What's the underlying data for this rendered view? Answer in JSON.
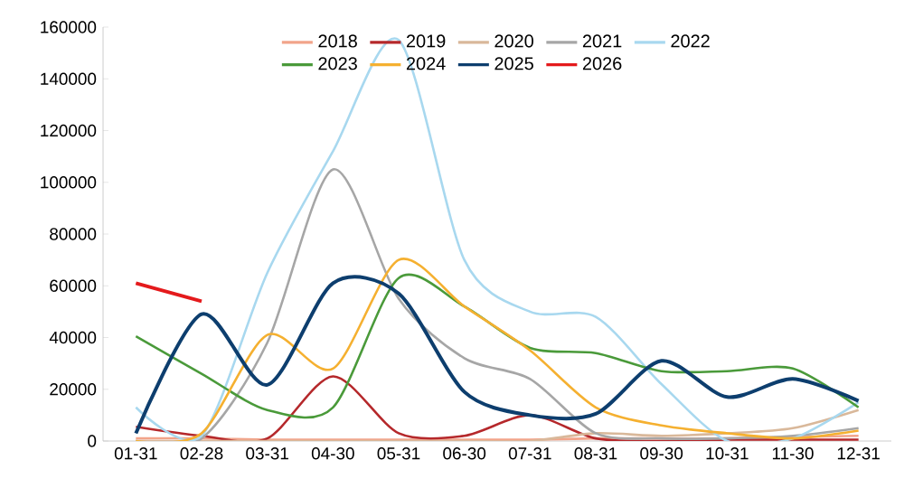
{
  "chart_data": {
    "type": "line",
    "categories": [
      "01-31",
      "02-28",
      "03-31",
      "04-30",
      "05-31",
      "06-30",
      "07-31",
      "08-31",
      "09-30",
      "10-31",
      "11-30",
      "12-31"
    ],
    "series": [
      {
        "name": "2018",
        "color": "#f2a48a",
        "values": [
          1000,
          1000,
          500,
          500,
          500,
          500,
          500,
          1000,
          1000,
          1000,
          1500,
          2000
        ]
      },
      {
        "name": "2019",
        "color": "#b5282b",
        "values": [
          5500,
          2000,
          1000,
          25000,
          3000,
          2000,
          10000,
          1000,
          0,
          500,
          500,
          500
        ]
      },
      {
        "name": "2020",
        "color": "#d9b89a",
        "values": [
          0,
          0,
          0,
          0,
          0,
          0,
          0,
          3000,
          2000,
          3000,
          5000,
          12000
        ]
      },
      {
        "name": "2021",
        "color": "#a6a6a6",
        "values": [
          0,
          1000,
          38000,
          105000,
          55000,
          32000,
          24000,
          3000,
          1000,
          1000,
          2000,
          5000
        ]
      },
      {
        "name": "2022",
        "color": "#a8d8ef",
        "values": [
          13000,
          2000,
          65000,
          112000,
          155000,
          70000,
          50000,
          48000,
          22000,
          0,
          1000,
          15000
        ]
      },
      {
        "name": "2023",
        "color": "#4a9a3a",
        "values": [
          40500,
          26000,
          12000,
          13000,
          63000,
          52000,
          36000,
          34000,
          27000,
          27000,
          28000,
          13000
        ]
      },
      {
        "name": "2024",
        "color": "#f5b030",
        "values": [
          0,
          3000,
          41000,
          28000,
          70000,
          52000,
          35000,
          13000,
          6000,
          3000,
          1000,
          4000
        ]
      },
      {
        "name": "2025",
        "color": "#0d3e6e",
        "values": [
          3000,
          49000,
          21700,
          61000,
          57000,
          19000,
          10000,
          10500,
          31000,
          17000,
          24000,
          15500
        ]
      },
      {
        "name": "2026",
        "color": "#e41a1c",
        "values": [
          61000,
          54000,
          null,
          null,
          null,
          null,
          null,
          null,
          null,
          null,
          null,
          null
        ]
      }
    ],
    "ylim": [
      0,
      160000
    ],
    "yticks": [
      0,
      20000,
      40000,
      60000,
      80000,
      100000,
      120000,
      140000,
      160000
    ],
    "grid": false,
    "legend": "top",
    "marker": "none",
    "line_style": "solid"
  }
}
